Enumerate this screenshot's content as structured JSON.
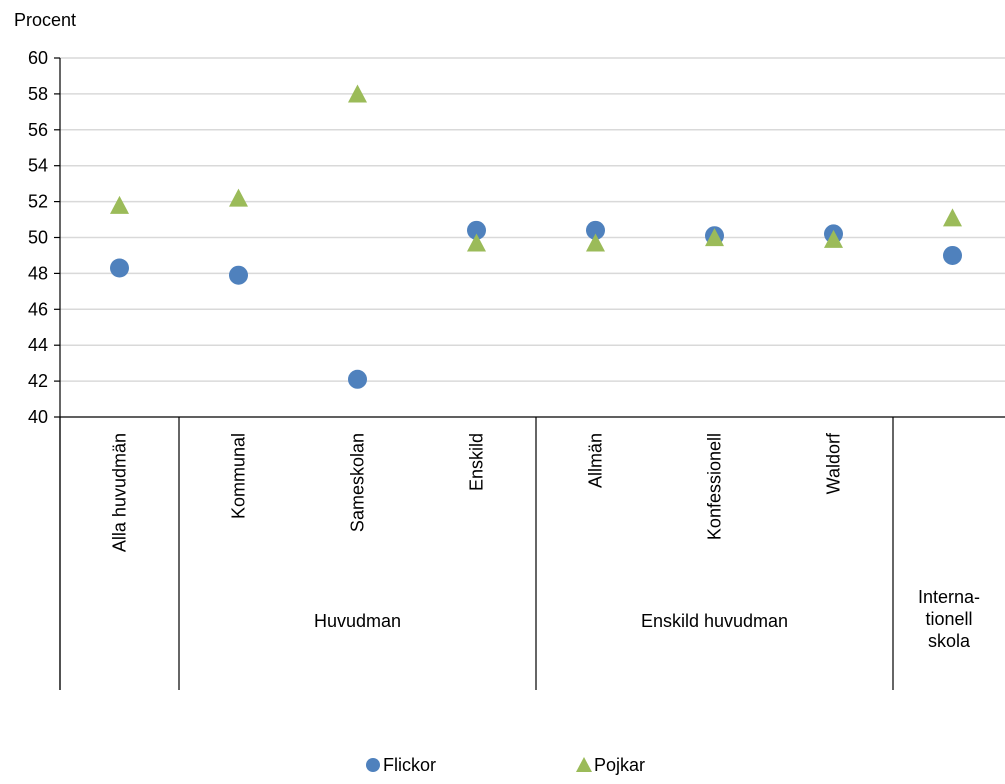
{
  "chart_data": {
    "type": "scatter",
    "ylabel": "Procent",
    "ylim": [
      40,
      60
    ],
    "yticks": [
      "40",
      "42",
      "44",
      "46",
      "48",
      "50",
      "52",
      "54",
      "56",
      "58",
      "60"
    ],
    "grid": true,
    "legend_position": "bottom",
    "categories": [
      "Alla huvudmän",
      "Kommunal",
      "Sameskolan",
      "Enskild",
      "Allmän",
      "Konfessionell",
      "Waldorf",
      ""
    ],
    "groups": [
      {
        "label": "",
        "lines": [
          ""
        ]
      },
      {
        "label": "Huvudman",
        "lines": [
          "Huvudman"
        ]
      },
      {
        "label": "Enskild huvudman",
        "lines": [
          "Enskild huvudman"
        ]
      },
      {
        "label": "Internationell skola",
        "lines": [
          "Interna-",
          "tionell",
          "skola"
        ]
      }
    ],
    "series": [
      {
        "name": "Flickor",
        "marker": "circle",
        "color": "#4F81BD",
        "values": [
          48.3,
          47.9,
          42.1,
          50.4,
          50.4,
          50.1,
          50.2,
          49.0
        ]
      },
      {
        "name": "Pojkar",
        "marker": "triangle",
        "color": "#9BBB59",
        "values": [
          51.7,
          52.1,
          57.9,
          49.6,
          49.6,
          49.9,
          49.8,
          51.0
        ]
      }
    ]
  }
}
